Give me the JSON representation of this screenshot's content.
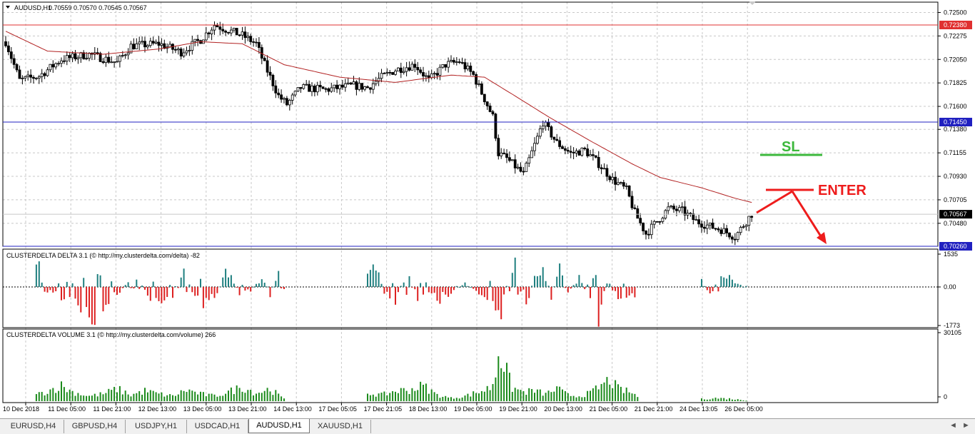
{
  "header": {
    "symbol_label": "AUDUSD,H1",
    "ohlc": "0.70559 0.70570 0.70545 0.70567"
  },
  "colors": {
    "bull_candle": "#000000",
    "bear_candle": "#000000",
    "moving_average": "#b22222",
    "line_0_72380": "#e03030",
    "line_0_71450": "#2020c0",
    "delta_positive": "#1f7f7f",
    "delta_negative": "#dd2020",
    "volume": "#1b8a1b",
    "annotation_sl": "#3cb83c",
    "annotation_enter": "#ee1c1c"
  },
  "chart_data": [
    {
      "type": "line",
      "title": "AUDUSD,H1  0.70559 0.70570 0.70545 0.70567",
      "price_axis_ticks": [
        "0.72500",
        "0.72275",
        "0.72050",
        "0.71825",
        "0.71600",
        "0.71380",
        "0.71155",
        "0.70930",
        "0.70705",
        "0.70480"
      ],
      "ylim": [
        0.7026,
        0.7251
      ],
      "horizontal_lines": [
        {
          "label": "0.72380",
          "value": 0.7238,
          "color": "#e03030"
        },
        {
          "label": "0.71450",
          "value": 0.7145,
          "color": "#2020c0"
        },
        {
          "label": "0.70260",
          "value": 0.7026,
          "color": "#2020c0"
        }
      ],
      "current_price": {
        "label": "0.70567",
        "value": 0.70567
      },
      "x_tick_labels": [
        "10 Dec 2018",
        "11 Dec 05:00",
        "11 Dec 21:00",
        "12 Dec 13:00",
        "13 Dec 05:00",
        "13 Dec 21:00",
        "14 Dec 13:00",
        "17 Dec 05:05",
        "17 Dec 21:05",
        "18 Dec 13:00",
        "19 Dec 05:00",
        "19 Dec 21:00",
        "20 Dec 13:00",
        "21 Dec 05:00",
        "21 Dec 21:00",
        "24 Dec 13:05",
        "26 Dec 05:00"
      ],
      "close_keypoints": [
        [
          0,
          0.7222
        ],
        [
          5,
          0.7185
        ],
        [
          12,
          0.7189
        ],
        [
          20,
          0.7205
        ],
        [
          30,
          0.721
        ],
        [
          40,
          0.7202
        ],
        [
          45,
          0.7218
        ],
        [
          55,
          0.722
        ],
        [
          63,
          0.7212
        ],
        [
          70,
          0.7224
        ],
        [
          75,
          0.7238
        ],
        [
          85,
          0.7228
        ],
        [
          90,
          0.722
        ],
        [
          93,
          0.72
        ],
        [
          98,
          0.717
        ],
        [
          101,
          0.7162
        ],
        [
          106,
          0.7178
        ],
        [
          115,
          0.7176
        ],
        [
          125,
          0.718
        ],
        [
          130,
          0.7178
        ],
        [
          135,
          0.7188
        ],
        [
          140,
          0.7195
        ],
        [
          147,
          0.72
        ],
        [
          152,
          0.7185
        ],
        [
          158,
          0.72
        ],
        [
          163,
          0.7203
        ],
        [
          168,
          0.719
        ],
        [
          175,
          0.715
        ],
        [
          177,
          0.7115
        ],
        [
          180,
          0.711
        ],
        [
          186,
          0.7095
        ],
        [
          191,
          0.713
        ],
        [
          193,
          0.7145
        ],
        [
          198,
          0.7125
        ],
        [
          203,
          0.7115
        ],
        [
          208,
          0.7118
        ],
        [
          213,
          0.7105
        ],
        [
          218,
          0.709
        ],
        [
          223,
          0.708
        ],
        [
          226,
          0.7058
        ],
        [
          230,
          0.7038
        ],
        [
          234,
          0.705
        ],
        [
          238,
          0.7062
        ],
        [
          243,
          0.706
        ],
        [
          248,
          0.705
        ],
        [
          253,
          0.7045
        ],
        [
          257,
          0.7042
        ],
        [
          262,
          0.7035
        ],
        [
          266,
          0.705
        ],
        [
          268,
          0.7057
        ]
      ],
      "ma_keypoints": [
        [
          0,
          0.7232
        ],
        [
          15,
          0.7213
        ],
        [
          35,
          0.721
        ],
        [
          55,
          0.7215
        ],
        [
          70,
          0.7222
        ],
        [
          85,
          0.722
        ],
        [
          100,
          0.72
        ],
        [
          120,
          0.7188
        ],
        [
          140,
          0.7183
        ],
        [
          160,
          0.719
        ],
        [
          172,
          0.7188
        ],
        [
          183,
          0.717
        ],
        [
          195,
          0.715
        ],
        [
          210,
          0.7127
        ],
        [
          225,
          0.7105
        ],
        [
          235,
          0.7092
        ],
        [
          250,
          0.7082
        ],
        [
          262,
          0.7072
        ],
        [
          268,
          0.7068
        ]
      ],
      "annotations": [
        {
          "text": "SL",
          "color": "#3cb83c"
        },
        {
          "text": "ENTER",
          "color": "#ee1c1c"
        }
      ]
    },
    {
      "type": "bar",
      "title": "CLUSTERDELTA DELTA 3.1 (© http://my.clusterdelta.com/delta) -82",
      "axis_ticks": [
        "1535",
        "0.00",
        "-1773"
      ],
      "ylim": [
        -1773,
        1535
      ],
      "values_keypoints": [
        [
          0,
          -200
        ],
        [
          3,
          900
        ],
        [
          6,
          300
        ],
        [
          9,
          500
        ],
        [
          12,
          1300
        ],
        [
          14,
          -400
        ],
        [
          17,
          -300
        ],
        [
          20,
          -500
        ],
        [
          25,
          -700
        ],
        [
          28,
          -1200
        ],
        [
          33,
          -1700
        ],
        [
          36,
          -1100
        ],
        [
          40,
          -400
        ],
        [
          44,
          300
        ],
        [
          48,
          400
        ],
        [
          52,
          -600
        ],
        [
          56,
          -800
        ],
        [
          60,
          -500
        ],
        [
          64,
          900
        ],
        [
          68,
          -700
        ],
        [
          72,
          -1200
        ],
        [
          76,
          -300
        ],
        [
          80,
          1000
        ],
        [
          84,
          -400
        ],
        [
          88,
          -200
        ],
        [
          92,
          500
        ],
        [
          95,
          -400
        ],
        [
          98,
          700
        ],
        [
          100,
          -200
        ]
      ],
      "gaps": [
        [
          100,
          130
        ],
        [
          228,
          250
        ]
      ],
      "values_segment2": [
        [
          130,
          500
        ],
        [
          133,
          1100
        ],
        [
          136,
          -300
        ],
        [
          140,
          -700
        ],
        [
          144,
          800
        ],
        [
          148,
          -500
        ],
        [
          152,
          -400
        ],
        [
          156,
          -600
        ],
        [
          160,
          -300
        ],
        [
          165,
          200
        ],
        [
          170,
          -300
        ],
        [
          174,
          -600
        ],
        [
          177,
          -1000
        ],
        [
          178,
          -1700
        ],
        [
          181,
          1000
        ],
        [
          184,
          1500
        ],
        [
          187,
          -900
        ],
        [
          190,
          600
        ],
        [
          193,
          1200
        ],
        [
          196,
          -500
        ],
        [
          199,
          1100
        ],
        [
          202,
          -300
        ],
        [
          206,
          500
        ],
        [
          209,
          -400
        ],
        [
          213,
          -1500
        ],
        [
          216,
          400
        ],
        [
          220,
          -700
        ],
        [
          224,
          -600
        ],
        [
          226,
          -400
        ]
      ],
      "values_segment3": [
        [
          250,
          300
        ],
        [
          253,
          -500
        ],
        [
          256,
          400
        ],
        [
          259,
          500
        ],
        [
          262,
          300
        ],
        [
          266,
          -100
        ]
      ]
    },
    {
      "type": "bar",
      "title": "CLUSTERDELTA VOLUME 3.1 (© http://my.clusterdelta.com/volume) 266",
      "axis_ticks": [
        "30105",
        "0"
      ],
      "ylim": [
        0,
        30105
      ],
      "segment1": [
        [
          0,
          1500
        ],
        [
          5,
          3500
        ],
        [
          10,
          2500
        ],
        [
          15,
          5000
        ],
        [
          20,
          7500
        ],
        [
          24,
          4500
        ],
        [
          30,
          2500
        ],
        [
          35,
          3500
        ],
        [
          40,
          6000
        ],
        [
          45,
          3000
        ],
        [
          50,
          5000
        ],
        [
          55,
          3500
        ],
        [
          60,
          2500
        ],
        [
          65,
          5500
        ],
        [
          70,
          3500
        ],
        [
          75,
          2500
        ],
        [
          80,
          4500
        ],
        [
          85,
          7000
        ],
        [
          90,
          4000
        ],
        [
          95,
          6000
        ],
        [
          100,
          1000
        ]
      ],
      "segment2": [
        [
          130,
          4000
        ],
        [
          135,
          3000
        ],
        [
          140,
          5000
        ],
        [
          145,
          5500
        ],
        [
          150,
          7500
        ],
        [
          155,
          3000
        ],
        [
          160,
          1500
        ],
        [
          165,
          2500
        ],
        [
          170,
          4500
        ],
        [
          174,
          6500
        ],
        [
          176,
          12500
        ],
        [
          177,
          29500
        ],
        [
          178,
          21000
        ],
        [
          182,
          6500
        ],
        [
          186,
          4500
        ],
        [
          190,
          5000
        ],
        [
          194,
          3500
        ],
        [
          198,
          6000
        ],
        [
          202,
          3000
        ],
        [
          206,
          2500
        ],
        [
          210,
          4000
        ],
        [
          214,
          7500
        ],
        [
          217,
          10500
        ],
        [
          220,
          6000
        ],
        [
          224,
          4500
        ],
        [
          227,
          2500
        ]
      ],
      "segment3": [
        [
          250,
          1000
        ],
        [
          255,
          1500
        ],
        [
          260,
          1200
        ],
        [
          266,
          400
        ]
      ]
    }
  ],
  "tabs": [
    {
      "label": "EURUSD,H4",
      "active": false
    },
    {
      "label": "GBPUSD,H4",
      "active": false
    },
    {
      "label": "USDJPY,H1",
      "active": false
    },
    {
      "label": "USDCAD,H1",
      "active": false
    },
    {
      "label": "AUDUSD,H1",
      "active": true
    },
    {
      "label": "XAUUSD,H1",
      "active": false
    }
  ]
}
